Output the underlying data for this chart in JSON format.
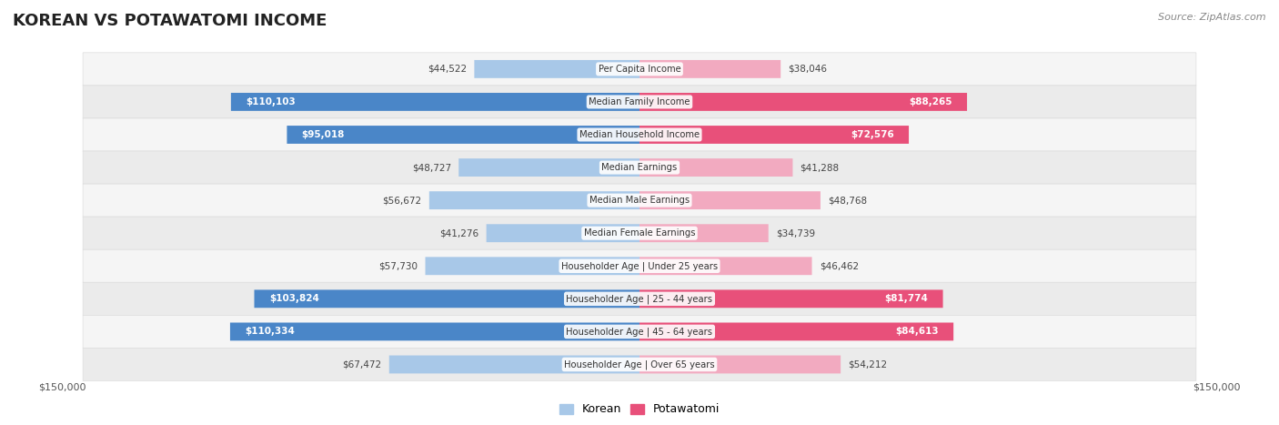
{
  "title": "KOREAN VS POTAWATOMI INCOME",
  "source": "Source: ZipAtlas.com",
  "categories": [
    "Per Capita Income",
    "Median Family Income",
    "Median Household Income",
    "Median Earnings",
    "Median Male Earnings",
    "Median Female Earnings",
    "Householder Age | Under 25 years",
    "Householder Age | 25 - 44 years",
    "Householder Age | 45 - 64 years",
    "Householder Age | Over 65 years"
  ],
  "korean_values": [
    44522,
    110103,
    95018,
    48727,
    56672,
    41276,
    57730,
    103824,
    110334,
    67472
  ],
  "potawatomi_values": [
    38046,
    88265,
    72576,
    41288,
    48768,
    34739,
    46462,
    81774,
    84613,
    54212
  ],
  "korean_labels": [
    "$44,522",
    "$110,103",
    "$95,018",
    "$48,727",
    "$56,672",
    "$41,276",
    "$57,730",
    "$103,824",
    "$110,334",
    "$67,472"
  ],
  "potawatomi_labels": [
    "$38,046",
    "$88,265",
    "$72,576",
    "$41,288",
    "$48,768",
    "$34,739",
    "$46,462",
    "$81,774",
    "$84,613",
    "$54,212"
  ],
  "max_value": 150000,
  "korean_color_dark": "#4a86c8",
  "korean_color_light": "#a8c8e8",
  "potawatomi_color_dark": "#e8507a",
  "potawatomi_color_light": "#f2aac0",
  "background_color": "#ffffff",
  "row_color_light": "#f5f5f5",
  "row_color_dark": "#ebebeb",
  "dark_threshold": 70000,
  "bar_height": 0.55,
  "left_axis_label": "$150,000",
  "right_axis_label": "$150,000",
  "legend_korean": "Korean",
  "legend_potawatomi": "Potawatomi"
}
